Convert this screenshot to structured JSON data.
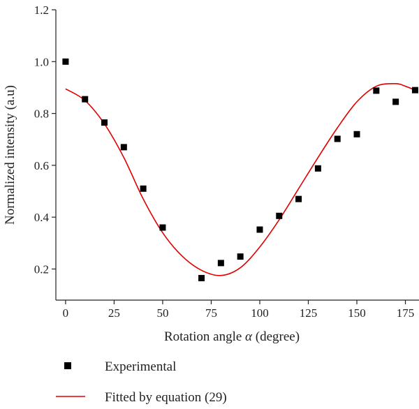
{
  "chart_data": {
    "type": "scatter",
    "xlabel_prefix": "Rotation angle ",
    "xlabel_symbol": "α",
    "xlabel_suffix": " (degree)",
    "ylabel": "Normalized intensity (a.u)",
    "xlim": [
      -5,
      182
    ],
    "ylim": [
      0.08,
      1.2
    ],
    "xticks": [
      0,
      25,
      50,
      75,
      100,
      125,
      150,
      175
    ],
    "yticks": [
      0.2,
      0.4,
      0.6,
      0.8,
      1.0,
      1.2
    ],
    "ytick_labels": [
      "0.2",
      "0.4",
      "0.6",
      "0.8",
      "1.0",
      "1.2"
    ],
    "grid": false,
    "legend_position": "bottom",
    "series": [
      {
        "name": "Experimental",
        "kind": "scatter",
        "marker": "square",
        "color": "#000000",
        "x": [
          0,
          10,
          20,
          30,
          40,
          50,
          70,
          80,
          90,
          100,
          110,
          120,
          130,
          140,
          150,
          160,
          170,
          180
        ],
        "y": [
          1.0,
          0.855,
          0.765,
          0.67,
          0.51,
          0.36,
          0.165,
          0.223,
          0.248,
          0.352,
          0.405,
          0.47,
          0.588,
          0.702,
          0.72,
          0.888,
          0.845,
          0.89
        ]
      },
      {
        "name": "Fitted by equation (29)",
        "kind": "line",
        "color": "#e00000",
        "x": [
          0,
          10,
          20,
          30,
          40,
          50,
          60,
          70,
          80,
          90,
          100,
          110,
          120,
          130,
          140,
          150,
          160,
          170,
          175,
          180
        ],
        "y": [
          0.895,
          0.85,
          0.76,
          0.63,
          0.47,
          0.34,
          0.25,
          0.195,
          0.175,
          0.205,
          0.285,
          0.39,
          0.51,
          0.63,
          0.745,
          0.845,
          0.905,
          0.915,
          0.905,
          0.89
        ]
      }
    ]
  }
}
